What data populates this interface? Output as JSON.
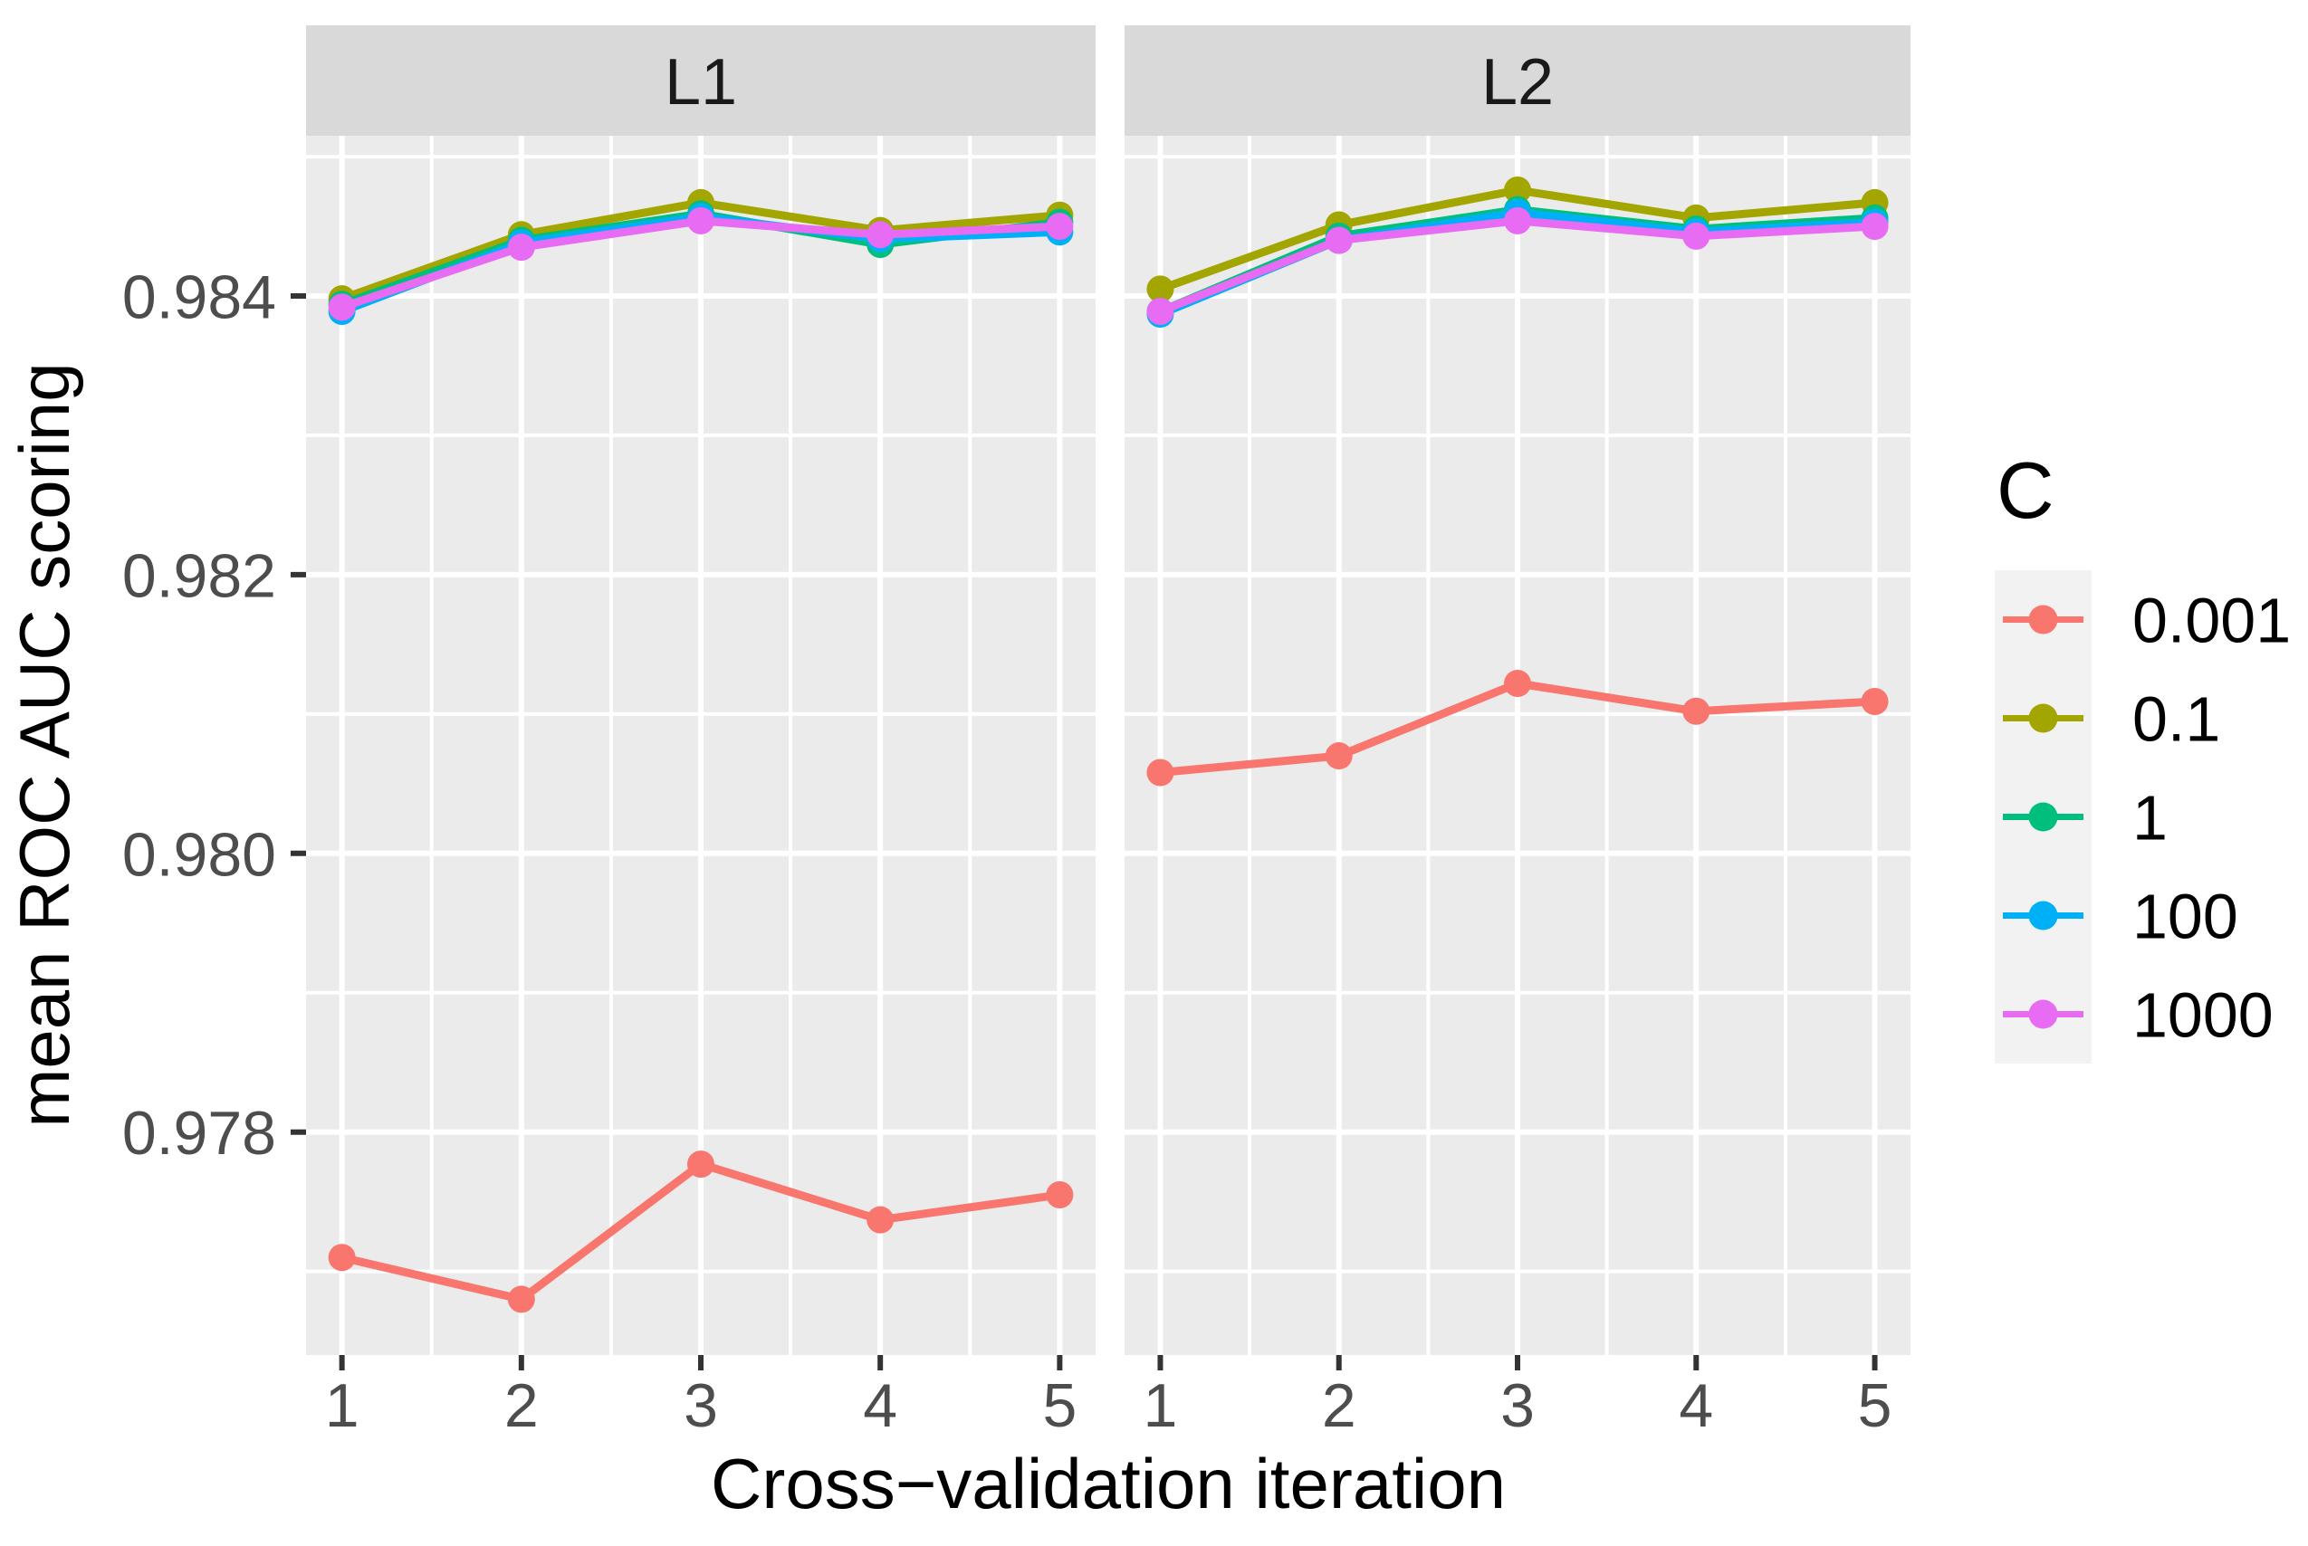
{
  "chart_data": {
    "type": "line",
    "title": "",
    "xlabel": "Cross−validation iteration",
    "ylabel": "mean ROC AUC scoring",
    "x": [
      1,
      2,
      3,
      4,
      5
    ],
    "xlim": [
      0.8,
      5.2
    ],
    "ylim": [
      0.9764,
      0.98515
    ],
    "xticks": {
      "values": [
        1,
        2,
        3,
        4,
        5
      ],
      "labels": [
        "1",
        "2",
        "3",
        "4",
        "5"
      ]
    },
    "yticks": {
      "values": [
        0.978,
        0.98,
        0.982,
        0.984
      ],
      "labels": [
        "0.978",
        "0.980",
        "0.982",
        "0.984"
      ]
    },
    "yminor": [
      0.977,
      0.979,
      0.981,
      0.983,
      0.985
    ],
    "xminor": [
      1.5,
      2.5,
      3.5,
      4.5
    ],
    "grid": "on",
    "legend_position": "right",
    "legend": {
      "title": "C",
      "entries": [
        "0.001",
        "0.1",
        "1",
        "100",
        "1000"
      ]
    },
    "facets": [
      {
        "label": "L1",
        "series": [
          {
            "name": "0.001",
            "values": [
              0.9771,
              0.9768,
              0.97777,
              0.97737,
              0.97755
            ]
          },
          {
            "name": "0.1",
            "values": [
              0.98398,
              0.98444,
              0.98467,
              0.98447,
              0.98458
            ]
          },
          {
            "name": "1",
            "values": [
              0.98394,
              0.9844,
              0.98459,
              0.98437,
              0.98453
            ]
          },
          {
            "name": "100",
            "values": [
              0.98389,
              0.98438,
              0.98457,
              0.98441,
              0.98446
            ]
          },
          {
            "name": "1000",
            "values": [
              0.98392,
              0.98435,
              0.98454,
              0.98444,
              0.9845
            ]
          }
        ]
      },
      {
        "label": "L2",
        "series": [
          {
            "name": "0.001",
            "values": [
              0.98058,
              0.9807,
              0.98122,
              0.98102,
              0.98109
            ]
          },
          {
            "name": "0.1",
            "values": [
              0.98405,
              0.98451,
              0.98476,
              0.98456,
              0.98467
            ]
          },
          {
            "name": "1",
            "values": [
              0.98389,
              0.98443,
              0.98462,
              0.98448,
              0.98456
            ]
          },
          {
            "name": "100",
            "values": [
              0.98387,
              0.9844,
              0.9846,
              0.98446,
              0.98453
            ]
          },
          {
            "name": "1000",
            "values": [
              0.98389,
              0.9844,
              0.98454,
              0.98443,
              0.9845
            ]
          }
        ]
      }
    ],
    "series_colors": {
      "0.001": "#F8766D",
      "0.1": "#A3A500",
      "1": "#00BF7D",
      "100": "#00B0F6",
      "1000": "#E76BF3"
    }
  },
  "styles": {
    "panel_bg": "#EBEBEB",
    "strip_bg": "#D9D9D9",
    "grid_color": "#FFFFFF",
    "tick_mark_color": "#333333",
    "tick_label_color": "#4D4D4D",
    "strip_text_color": "#1A1A1A",
    "title_color": "#000000",
    "legend_key_bg": "#F2F2F2",
    "background": "#FFFFFF"
  }
}
